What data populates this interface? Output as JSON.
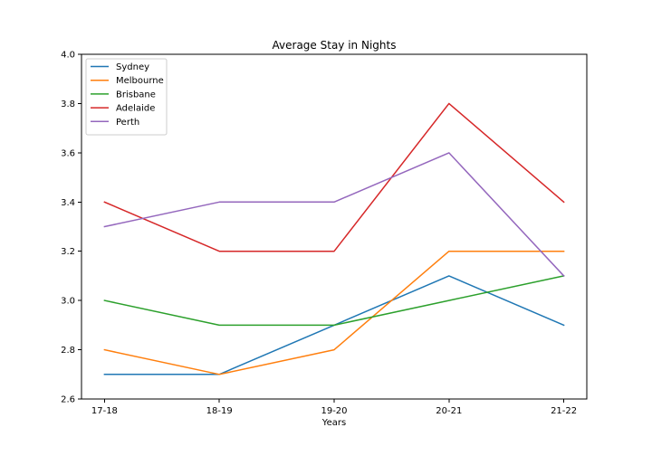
{
  "chart_data": {
    "type": "line",
    "title": "Average Stay in Nights",
    "xlabel": "Years",
    "ylabel": "",
    "categories": [
      "17-18",
      "18-19",
      "19-20",
      "20-21",
      "21-22"
    ],
    "ylim": [
      2.6,
      4.0
    ],
    "yticks": [
      "2.6",
      "2.8",
      "3.0",
      "3.2",
      "3.4",
      "3.6",
      "3.8",
      "4.0"
    ],
    "grid": false,
    "legend_position": "top-left",
    "series": [
      {
        "name": "Sydney",
        "color": "#1f77b4",
        "values": [
          2.7,
          2.7,
          2.9,
          3.1,
          2.9
        ]
      },
      {
        "name": "Melbourne",
        "color": "#ff7f0e",
        "values": [
          2.8,
          2.7,
          2.8,
          3.2,
          3.2
        ]
      },
      {
        "name": "Brisbane",
        "color": "#2ca02c",
        "values": [
          3.0,
          2.9,
          2.9,
          3.0,
          3.1
        ]
      },
      {
        "name": "Adelaide",
        "color": "#d62728",
        "values": [
          3.4,
          3.2,
          3.2,
          3.8,
          3.4
        ]
      },
      {
        "name": "Perth",
        "color": "#9467bd",
        "values": [
          3.3,
          3.4,
          3.4,
          3.6,
          3.1
        ]
      }
    ]
  }
}
